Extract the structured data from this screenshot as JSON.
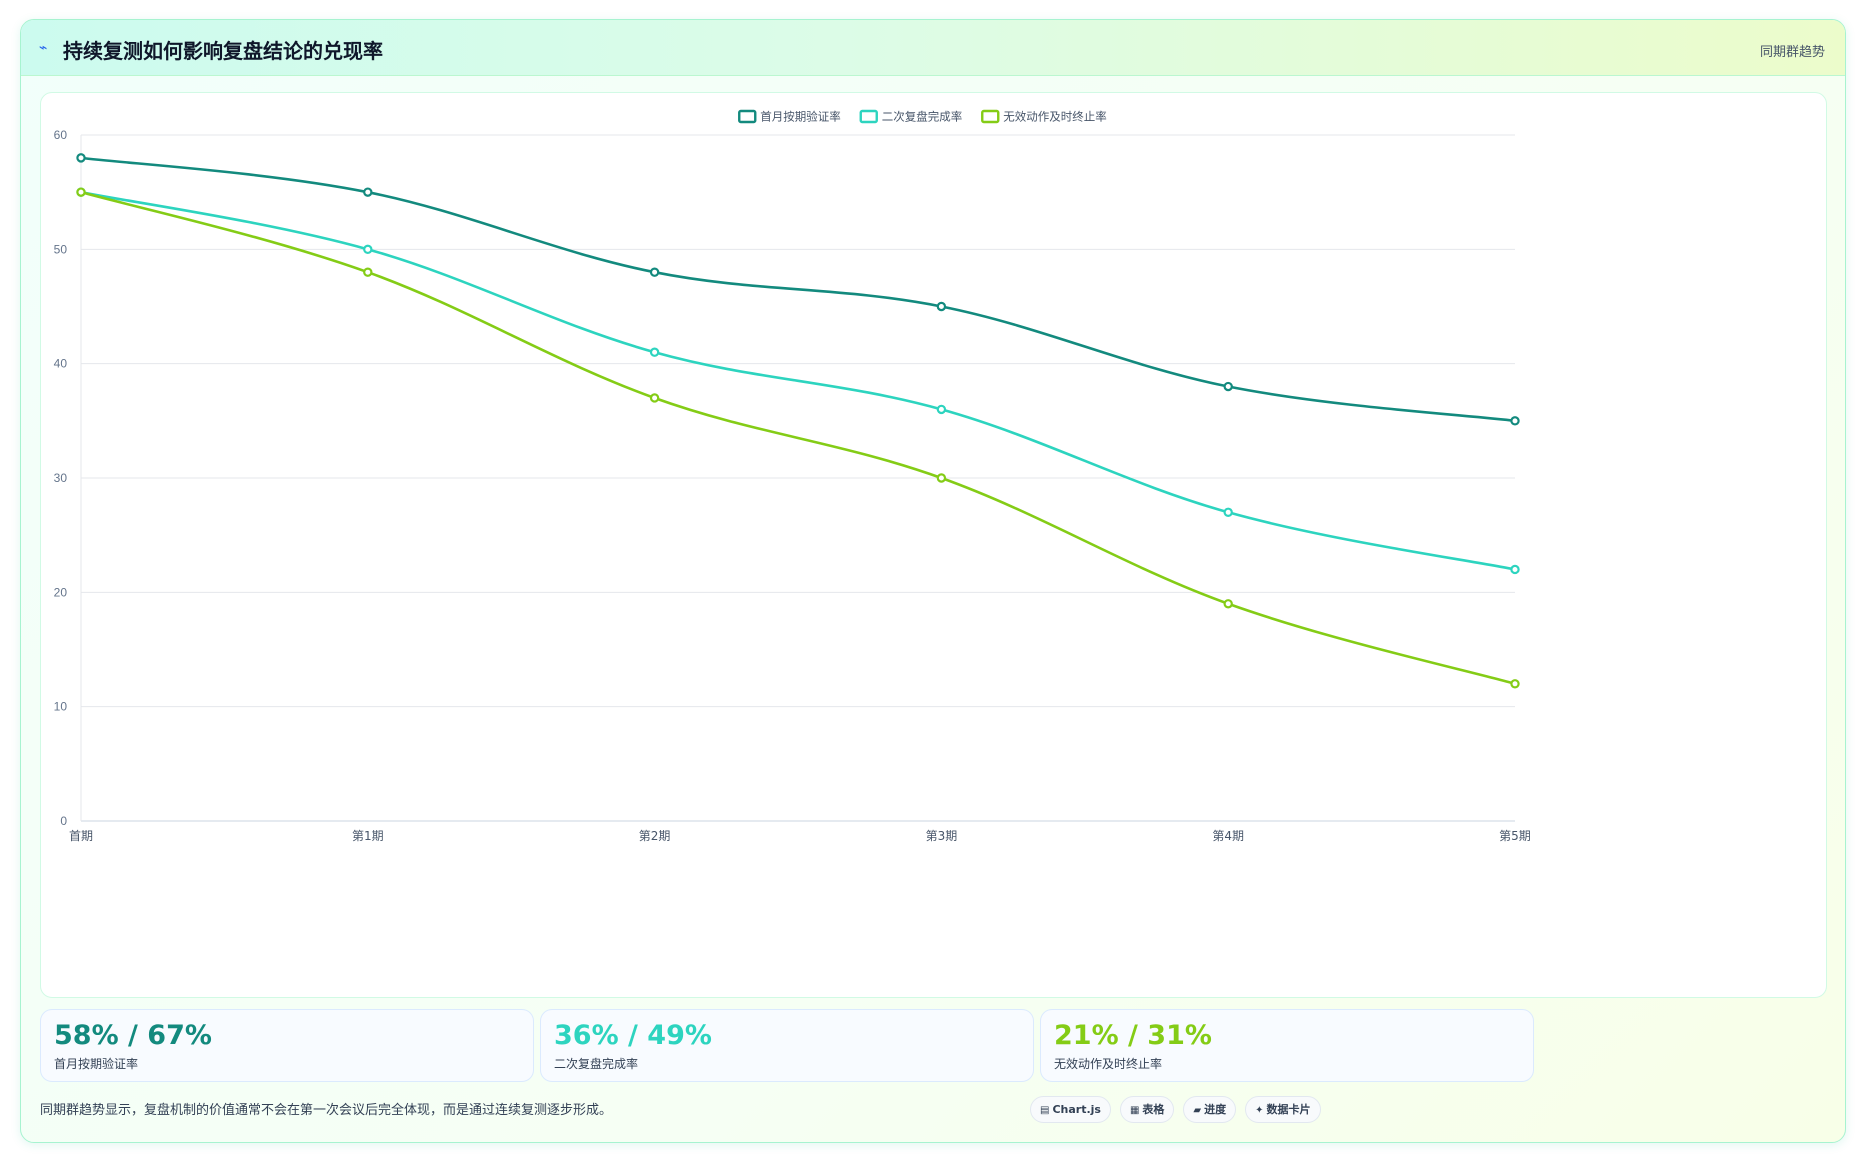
{
  "header": {
    "icon": "sparkle-icon",
    "title": "持续复测如何影响复盘结论的兑现率",
    "right_label": "同期群趋势"
  },
  "colors": {
    "series1": "#138a7e",
    "series2": "#2dd4bf",
    "series3": "#84cc16"
  },
  "chart_data": {
    "type": "line",
    "categories": [
      "首期",
      "第1期",
      "第2期",
      "第3期",
      "第4期",
      "第5期"
    ],
    "series": [
      {
        "name": "首月按期验证率",
        "values": [
          58,
          55,
          48,
          45,
          38,
          35
        ],
        "color": "#138a7e"
      },
      {
        "name": "二次复盘完成率",
        "values": [
          55,
          50,
          41,
          36,
          27,
          22
        ],
        "color": "#2dd4bf"
      },
      {
        "name": "无效动作及时终止率",
        "values": [
          55,
          48,
          37,
          30,
          19,
          12
        ],
        "color": "#84cc16"
      }
    ],
    "ylim": [
      0,
      60
    ],
    "yticks": [
      0,
      10,
      20,
      30,
      40,
      50,
      60
    ],
    "grid": true,
    "legend": "top-center",
    "smooth": true
  },
  "stats": [
    {
      "value": "58% / 67%",
      "label": "首月按期验证率",
      "color": "#138a7e"
    },
    {
      "value": "36% / 49%",
      "label": "二次复盘完成率",
      "color": "#2dd4bf"
    },
    {
      "value": "21% / 31%",
      "label": "无效动作及时终止率",
      "color": "#84cc16"
    }
  ],
  "footer": {
    "note": "同期群趋势显示，复盘机制的价值通常不会在第一次会议后完全体现，而是通过连续复测逐步形成。",
    "chips": [
      {
        "icon": "chart-icon",
        "glyph": "▤",
        "label": "Chart.js"
      },
      {
        "icon": "table-icon",
        "glyph": "▦",
        "label": "表格"
      },
      {
        "icon": "progress-icon",
        "glyph": "▰",
        "label": "进度"
      },
      {
        "icon": "card-icon",
        "glyph": "✦",
        "label": "数据卡片"
      }
    ]
  }
}
